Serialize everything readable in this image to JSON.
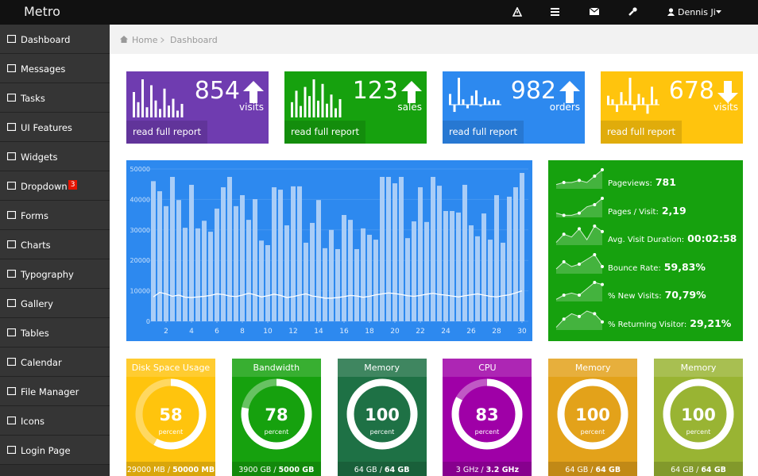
{
  "brand": "Metro",
  "user": "Dennis Ji",
  "sidebar": [
    {
      "label": "Dashboard"
    },
    {
      "label": "Messages"
    },
    {
      "label": "Tasks"
    },
    {
      "label": "UI Features"
    },
    {
      "label": "Widgets"
    },
    {
      "label": "Dropdown",
      "badge": "3"
    },
    {
      "label": "Forms"
    },
    {
      "label": "Charts"
    },
    {
      "label": "Typography"
    },
    {
      "label": "Gallery"
    },
    {
      "label": "Tables"
    },
    {
      "label": "Calendar"
    },
    {
      "label": "File Manager"
    },
    {
      "label": "Icons"
    },
    {
      "label": "Login Page"
    }
  ],
  "breadcrumb": [
    "Home",
    "Dashboard"
  ],
  "stats": [
    {
      "value": 854,
      "label": "visits",
      "trend": "up",
      "color": "#6f3cb0",
      "link": "read full report",
      "spark": [
        30,
        18,
        45,
        12,
        38,
        20,
        10,
        34,
        14,
        22,
        8,
        16
      ]
    },
    {
      "value": 123,
      "label": "sales",
      "trend": "up",
      "color": "#16a10e",
      "link": "read full report",
      "spark": [
        20,
        35,
        15,
        40,
        28,
        50,
        22,
        44,
        18,
        30,
        12,
        24
      ]
    },
    {
      "value": 982,
      "label": "orders",
      "trend": "up",
      "color": "#2d89ef",
      "link": "read full report",
      "spark": [
        12,
        -8,
        30,
        6,
        -4,
        10,
        16,
        -2,
        8,
        4,
        6,
        5
      ]
    },
    {
      "value": 678,
      "label": "visits",
      "trend": "down",
      "color": "#ffc40d",
      "link": "read full report",
      "spark": [
        10,
        6,
        -8,
        14,
        4,
        30,
        -6,
        12,
        8,
        -10,
        20,
        6
      ]
    }
  ],
  "chart_data": {
    "type": "bar",
    "background": "#2d89ef",
    "x": [
      1,
      1.5,
      2,
      2.5,
      3,
      3.5,
      4,
      4.5,
      5,
      5.5,
      6,
      6.5,
      7,
      7.5,
      8,
      8.5,
      9,
      9.5,
      10,
      10.5,
      11,
      11.5,
      12,
      12.5,
      13,
      13.5,
      14,
      14.5,
      15,
      15.5,
      16,
      16.5,
      17,
      17.5,
      18,
      18.5,
      19,
      19.5,
      20,
      20.5,
      21,
      21.5,
      22,
      22.5,
      23,
      23.5,
      24,
      24.5,
      25,
      25.5,
      26,
      26.5,
      27,
      27.5,
      28,
      28.5,
      29,
      29.5,
      30
    ],
    "series": [
      {
        "type": "bar",
        "color": "#a9cdf7",
        "values": [
          46000,
          42700,
          37800,
          47400,
          39800,
          30700,
          44800,
          30500,
          33000,
          29400,
          37000,
          44000,
          47400,
          37800,
          41400,
          33300,
          40100,
          26500,
          25000,
          44000,
          43200,
          31500,
          44300,
          44300,
          25800,
          32300,
          39800,
          24000,
          30000,
          23700,
          34900,
          33300,
          23700,
          30500,
          28400,
          26800,
          47400,
          47400,
          45300,
          47400,
          27300,
          32800,
          44000,
          32600,
          47400,
          44500,
          36200,
          36200,
          35700,
          44800,
          31500,
          27900,
          35400,
          26800,
          41400,
          25800,
          40900,
          44000,
          48700
        ]
      },
      {
        "type": "line",
        "color": "#ffffff",
        "values": [
          8000,
          9500,
          9000,
          8200,
          8600,
          7900,
          7800,
          8000,
          8200,
          8500,
          9000,
          8800,
          8300,
          8100,
          8600,
          9200,
          8700,
          8000,
          8400,
          8900,
          8500,
          7800,
          8100,
          8600,
          9000,
          8300,
          8000,
          7600,
          7600,
          7800,
          8100,
          8500,
          8300,
          7900,
          8200,
          8700,
          9000,
          9300,
          9100,
          8800,
          8400,
          8200,
          8500,
          8900,
          9200,
          8800,
          8600,
          8300,
          8000,
          8400,
          8700,
          9000,
          8600,
          8200,
          8000,
          8400,
          8700,
          9300,
          10000
        ]
      }
    ],
    "xlim": [
      0.5,
      30.5
    ],
    "xticks": [
      2,
      4,
      6,
      8,
      10,
      12,
      14,
      16,
      18,
      20,
      22,
      24,
      26,
      28,
      30
    ],
    "ylim": [
      0,
      50000
    ],
    "yticks": [
      0,
      10000,
      20000,
      30000,
      40000,
      50000
    ],
    "grid": true
  },
  "metrics": [
    {
      "label": "Pageviews:",
      "value": "781",
      "spark": [
        2,
        3,
        3,
        4,
        3,
        6,
        9
      ]
    },
    {
      "label": "Pages / Visit:",
      "value": "2,19",
      "spark": [
        2,
        1,
        1,
        2,
        5,
        6,
        9
      ]
    },
    {
      "label": "Avg. Visit Duration:",
      "value": "00:02:58",
      "spark": [
        1,
        4,
        3,
        6,
        2,
        7,
        5
      ]
    },
    {
      "label": "Bounce Rate:",
      "value": "59,83%",
      "spark": [
        2,
        5,
        3,
        4,
        6,
        8,
        3
      ]
    },
    {
      "label": "% New Visits:",
      "value": "70,79%",
      "spark": [
        1,
        3,
        4,
        3,
        6,
        9,
        8
      ]
    },
    {
      "label": "% Returning Visitor:",
      "value": "29,21%",
      "spark": [
        1,
        4,
        6,
        5,
        7,
        6,
        3
      ]
    }
  ],
  "gauges": [
    {
      "title": "Disk Space Usage",
      "value": 58,
      "unit": "percent",
      "used": "29000 MB /",
      "total": "50000 MB",
      "color": "#ffc40d"
    },
    {
      "title": "Bandwidth",
      "value": 78,
      "unit": "percent",
      "used": "3900 GB /",
      "total": "5000 GB",
      "color": "#16a10e"
    },
    {
      "title": "Memory",
      "value": 100,
      "unit": "percent",
      "used": "64 GB /",
      "total": "64 GB",
      "color": "#1e7145"
    },
    {
      "title": "CPU",
      "value": 83,
      "unit": "percent",
      "used": "3 GHz /",
      "total": "3.2 GHz",
      "color": "#9f00a7"
    },
    {
      "title": "Memory",
      "value": 100,
      "unit": "percent",
      "used": "64 GB /",
      "total": "64 GB",
      "color": "#e3a21a"
    },
    {
      "title": "Memory",
      "value": 100,
      "unit": "percent",
      "used": "64 GB /",
      "total": "64 GB",
      "color": "#99b433"
    }
  ],
  "gauge_max": 100
}
